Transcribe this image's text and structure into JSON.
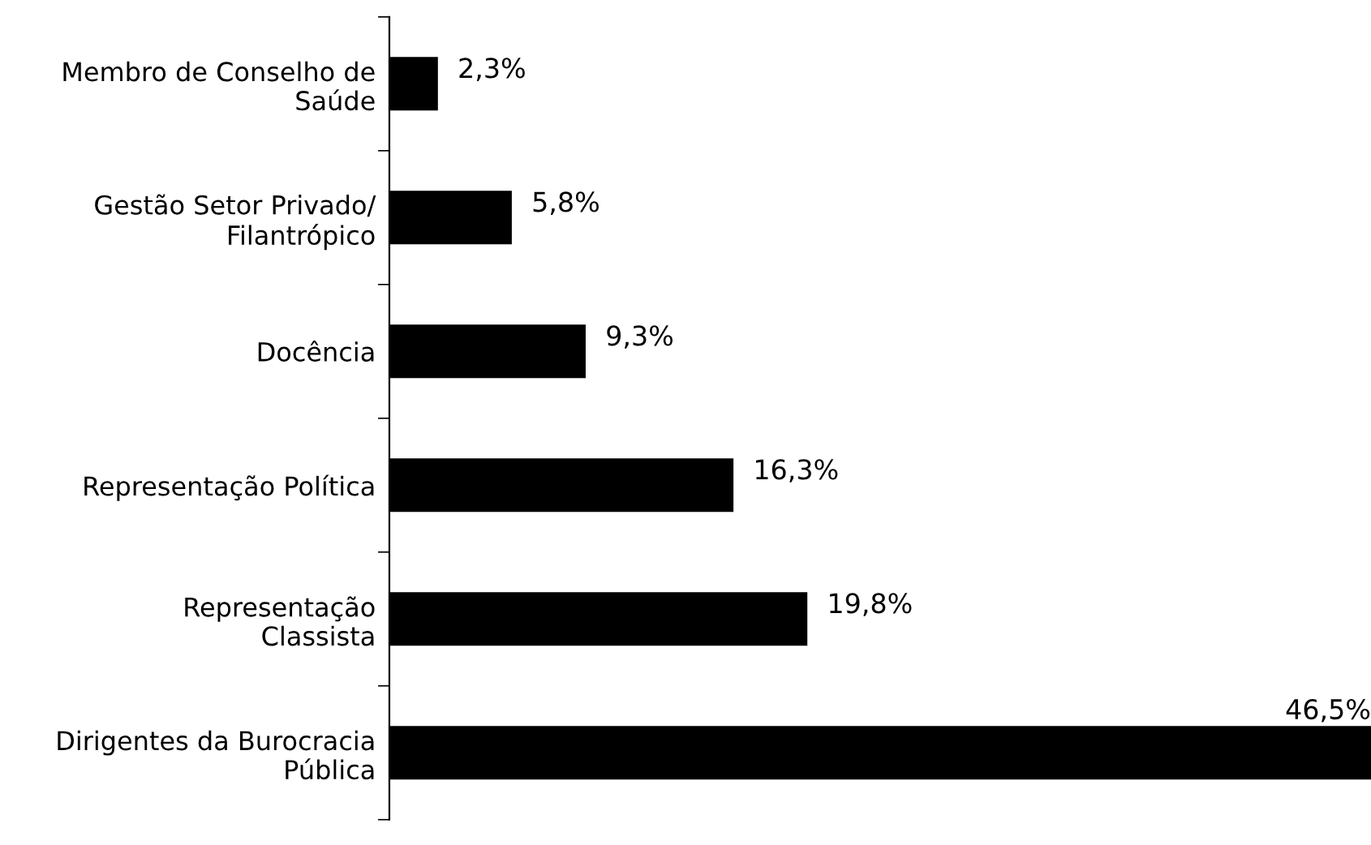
{
  "chart_data": {
    "type": "bar",
    "orientation": "horizontal",
    "categories": [
      "Membro de Conselho de\nSaúde",
      "Gestão Setor Privado/\nFilantrópico",
      "Docência",
      "Representação Política",
      "Representação\nClassista",
      "Dirigentes da Burocracia\nPública"
    ],
    "values": [
      2.3,
      5.8,
      9.3,
      16.3,
      19.8,
      46.5
    ],
    "value_labels": [
      "2,3%",
      "5,8%",
      "9,3%",
      "16,3%",
      "19,8%",
      "46,5%"
    ],
    "color": "#000000",
    "tick_labels": "y"
  }
}
